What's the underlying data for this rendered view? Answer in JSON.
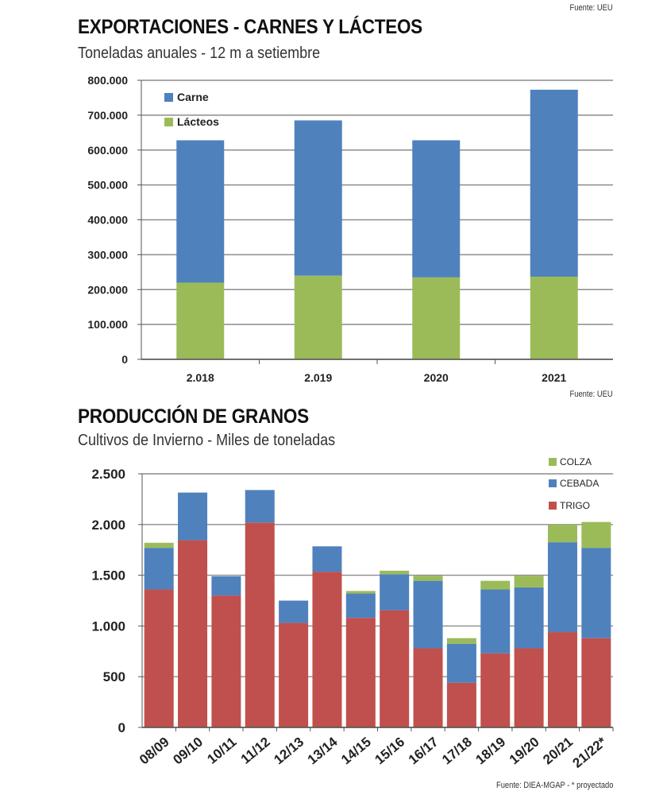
{
  "sources": {
    "top": "Fuente: UEU",
    "middle": "Fuente: UEU",
    "bottom": "Fuente: DIEA-MGAP - * proyectado"
  },
  "colors": {
    "carne": "#4f81bd",
    "lacteos": "#9bbb59",
    "trigo": "#c0504d",
    "cebada": "#4f81bd",
    "colza": "#9bbb59",
    "grid": "#8c8c8c"
  },
  "chart_data": [
    {
      "type": "bar",
      "stacked": true,
      "title": "EXPORTACIONES - CARNES Y LÁCTEOS",
      "subtitle": "Toneladas anuales - 12 m a setiembre",
      "categories": [
        "2.018",
        "2.019",
        "2020",
        "2021"
      ],
      "series": [
        {
          "name": "Lácteos",
          "values": [
            220000,
            240000,
            235000,
            237000
          ]
        },
        {
          "name": "Carne",
          "values": [
            408000,
            445000,
            393000,
            536000
          ]
        }
      ],
      "legend": [
        "Carne",
        "Lácteos"
      ],
      "ylim": [
        0,
        800000
      ],
      "yticks": [
        0,
        100000,
        200000,
        300000,
        400000,
        500000,
        600000,
        700000,
        800000
      ],
      "ytick_labels": [
        "0",
        "100.000",
        "200.000",
        "300.000",
        "400.000",
        "500.000",
        "600.000",
        "700.000",
        "800.000"
      ],
      "grid": true,
      "legend_position": "top-left"
    },
    {
      "type": "bar",
      "stacked": true,
      "title": "PRODUCCIÓN DE GRANOS",
      "subtitle": "Cultivos de Invierno - Miles de toneladas",
      "categories": [
        "08/09",
        "09/10",
        "10/11",
        "11/12",
        "12/13",
        "13/14",
        "14/15",
        "15/16",
        "16/17",
        "17/18",
        "18/19",
        "19/20",
        "20/21",
        "21/22*"
      ],
      "series": [
        {
          "name": "TRIGO",
          "values": [
            1360,
            1845,
            1300,
            2020,
            1030,
            1535,
            1080,
            1155,
            780,
            440,
            730,
            780,
            940,
            880
          ]
        },
        {
          "name": "CEBADA",
          "values": [
            410,
            470,
            190,
            320,
            220,
            250,
            240,
            355,
            665,
            385,
            630,
            600,
            885,
            890
          ]
        },
        {
          "name": "COLZA",
          "values": [
            50,
            0,
            0,
            0,
            0,
            0,
            25,
            35,
            50,
            55,
            85,
            115,
            175,
            255
          ]
        }
      ],
      "legend": [
        "COLZA",
        "CEBADA",
        "TRIGO"
      ],
      "ylim": [
        0,
        2500
      ],
      "yticks": [
        0,
        500,
        1000,
        1500,
        2000,
        2500
      ],
      "ytick_labels": [
        "0",
        "500",
        "1.000",
        "1.500",
        "2.000",
        "2.500"
      ],
      "grid": true,
      "legend_position": "top-right"
    }
  ]
}
